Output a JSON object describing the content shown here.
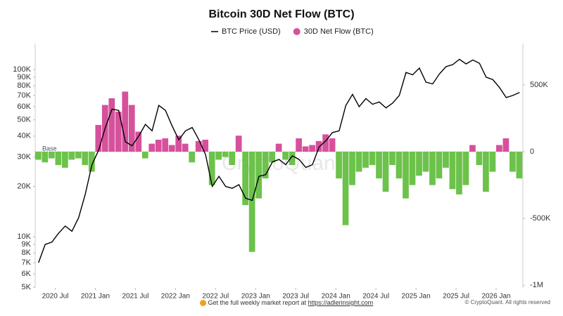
{
  "chart_data": {
    "type": "combo",
    "title": "Bitcoin 30D Net Flow (BTC)",
    "watermark": "CryptoQuant",
    "annotation": "Base",
    "x": [
      "2020-04",
      "2020-05",
      "2020-06",
      "2020-07",
      "2020-08",
      "2020-09",
      "2020-10",
      "2020-11",
      "2020-12",
      "2021-01",
      "2021-02",
      "2021-03",
      "2021-04",
      "2021-05",
      "2021-06",
      "2021-07",
      "2021-08",
      "2021-09",
      "2021-10",
      "2021-11",
      "2021-12",
      "2022-01",
      "2022-02",
      "2022-03",
      "2022-04",
      "2022-05",
      "2022-06",
      "2022-07",
      "2022-08",
      "2022-09",
      "2022-10",
      "2022-11",
      "2022-12",
      "2023-01",
      "2023-02",
      "2023-03",
      "2023-04",
      "2023-05",
      "2023-06",
      "2023-07",
      "2023-08",
      "2023-09",
      "2023-10",
      "2023-11",
      "2023-12",
      "2024-01",
      "2024-02",
      "2024-03",
      "2024-04",
      "2024-05",
      "2024-06",
      "2024-07",
      "2024-08",
      "2024-09",
      "2024-10",
      "2024-11",
      "2024-12",
      "2025-01",
      "2025-02",
      "2025-03",
      "2025-04",
      "2025-05",
      "2025-06",
      "2025-07",
      "2025-08",
      "2025-09",
      "2025-10",
      "2025-11",
      "2025-12",
      "2026-01",
      "2026-02",
      "2026-03",
      "2026-04"
    ],
    "xlim": [
      "2020-04",
      "2026-05"
    ],
    "xticks": [
      {
        "value": "2020-07",
        "label": "2020 Jul"
      },
      {
        "value": "2021-01",
        "label": "2021 Jan"
      },
      {
        "value": "2021-07",
        "label": "2021 Jul"
      },
      {
        "value": "2022-01",
        "label": "2022 Jan"
      },
      {
        "value": "2022-07",
        "label": "2022 Jul"
      },
      {
        "value": "2023-01",
        "label": "2023 Jan"
      },
      {
        "value": "2023-07",
        "label": "2023 Jul"
      },
      {
        "value": "2024-01",
        "label": "2024 Jan"
      },
      {
        "value": "2024-07",
        "label": "2024 Jul"
      },
      {
        "value": "2025-01",
        "label": "2025 Jan"
      },
      {
        "value": "2025-07",
        "label": "2025 Jul"
      },
      {
        "value": "2026-01",
        "label": "2026 Jan"
      }
    ],
    "ylim": [
      4950,
      143000
    ],
    "yscale": "log",
    "yticks": [
      {
        "value": 100000,
        "label": "100K"
      },
      {
        "value": 90000,
        "label": "90K"
      },
      {
        "value": 80000,
        "label": "80K"
      },
      {
        "value": 70000,
        "label": "70K"
      },
      {
        "value": 60000,
        "label": "60K"
      },
      {
        "value": 50000,
        "label": "50K"
      },
      {
        "value": 40000,
        "label": "40K"
      },
      {
        "value": 30000,
        "label": "30K"
      },
      {
        "value": 20000,
        "label": "20K"
      },
      {
        "value": 10000,
        "label": "10K"
      },
      {
        "value": 9000,
        "label": "9K"
      },
      {
        "value": 8000,
        "label": "8K"
      },
      {
        "value": 7000,
        "label": "7K"
      },
      {
        "value": 6000,
        "label": "6K"
      },
      {
        "value": 5000,
        "label": "5K"
      }
    ],
    "y2lim": [
      -1020000,
      810000
    ],
    "y2ticks": [
      {
        "value": 500000,
        "label": "500K"
      },
      0,
      {
        "value": -500000,
        "label": "-500K"
      },
      {
        "value": -1000000,
        "label": "-1M"
      }
    ],
    "legend": "top",
    "series": [
      {
        "name": "BTC Price (USD)",
        "type": "line",
        "color": "#000000",
        "values": [
          7000,
          9000,
          9300,
          10500,
          11600,
          10800,
          13000,
          18000,
          27000,
          33000,
          45000,
          58000,
          57000,
          37000,
          35000,
          40000,
          47000,
          43000,
          61000,
          57000,
          46000,
          38000,
          43000,
          45000,
          38000,
          31000,
          20000,
          23000,
          20000,
          19500,
          20500,
          17000,
          16500,
          23000,
          23500,
          28000,
          29000,
          27000,
          30500,
          29000,
          26000,
          27000,
          34500,
          37500,
          42000,
          43000,
          61000,
          71000,
          60000,
          67000,
          62000,
          64000,
          59000,
          63000,
          70000,
          96000,
          93000,
          102000,
          84000,
          82000,
          94000,
          104000,
          107000,
          115000,
          108000,
          114000,
          109000,
          90000,
          87000,
          78000,
          68000,
          70000,
          73000
        ]
      },
      {
        "name": "30D Net Flow (BTC)",
        "type": "bar",
        "axis": "y2",
        "color": "#d6519c",
        "negative_color": "#6cc24a",
        "values": [
          -60000,
          -80000,
          -50000,
          -100000,
          -120000,
          -60000,
          -50000,
          -100000,
          -150000,
          200000,
          350000,
          400000,
          300000,
          450000,
          350000,
          150000,
          -50000,
          60000,
          90000,
          100000,
          50000,
          120000,
          60000,
          -80000,
          80000,
          90000,
          -250000,
          -60000,
          -40000,
          -100000,
          120000,
          -400000,
          -750000,
          -350000,
          -200000,
          -80000,
          60000,
          -60000,
          -100000,
          100000,
          40000,
          50000,
          80000,
          130000,
          100000,
          -200000,
          -550000,
          -250000,
          -150000,
          -120000,
          -100000,
          -200000,
          -300000,
          -100000,
          -200000,
          -350000,
          -250000,
          -180000,
          -150000,
          -250000,
          -200000,
          -120000,
          -280000,
          -320000,
          -250000,
          50000,
          -100000,
          -300000,
          -150000,
          50000,
          100000,
          -150000,
          -200000
        ]
      }
    ]
  },
  "footer": {
    "note": "Get the full weekly market report at",
    "link": "https://adlerinsight.com",
    "copyright": "© CryptoQuant. All rights reserved"
  }
}
